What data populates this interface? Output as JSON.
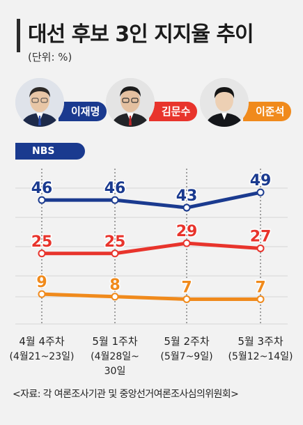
{
  "header": {
    "title": "대선 후보 3인 지지율 추이",
    "unit": "(단위: %)"
  },
  "candidates": [
    {
      "name": "이재명",
      "color": "#1a3a8f"
    },
    {
      "name": "김문수",
      "color": "#e8342c"
    },
    {
      "name": "이준석",
      "color": "#f08a1c"
    }
  ],
  "source_tag": "NBS",
  "footer": "<자료: 각 여론조사기관 및 중앙선거여론조사심의위원회>",
  "chart_data": {
    "type": "line",
    "categories": [
      [
        "4월 4주차",
        "(4월21~23일)"
      ],
      [
        "5월 1주차",
        "(4월28일~",
        "30일"
      ],
      [
        "5월 2주차",
        "(5월7~9일)"
      ],
      [
        "5월 3주차",
        "(5월12~14일)"
      ]
    ],
    "series": [
      {
        "name": "이재명",
        "values": [
          46,
          46,
          43,
          49
        ],
        "color": "#1a3a8f"
      },
      {
        "name": "김문수",
        "values": [
          25,
          25,
          29,
          27
        ],
        "color": "#e8342c"
      },
      {
        "name": "이준석",
        "values": [
          9,
          8,
          7,
          7
        ],
        "color": "#f08a1c"
      }
    ],
    "grid": true
  }
}
